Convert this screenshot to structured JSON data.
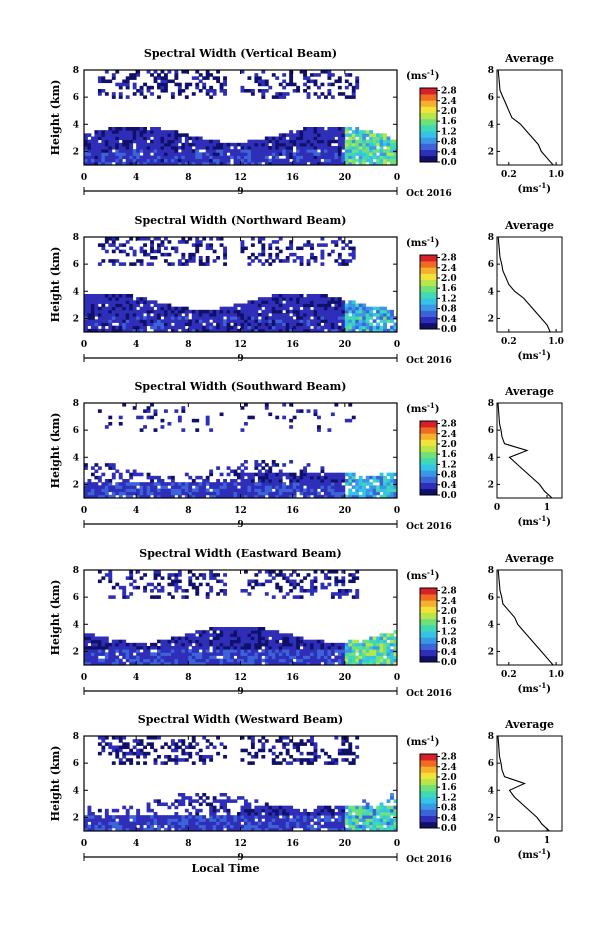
{
  "colorbar": {
    "unit_label": "(ms",
    "unit_exponent": "-1",
    "unit_close": ")",
    "ticks": [
      "0.0",
      "0.4",
      "0.8",
      "1.2",
      "1.6",
      "2.0",
      "2.4",
      "2.8"
    ],
    "tick_values": [
      0.0,
      0.4,
      0.8,
      1.2,
      1.6,
      2.0,
      2.4,
      2.8
    ],
    "range": [
      0,
      2.9
    ],
    "colors": [
      "#10106a",
      "#2e2eb8",
      "#3d63d9",
      "#3a96e6",
      "#36c4e6",
      "#3fd9b4",
      "#6fe07a",
      "#b8e64a",
      "#f2e23a",
      "#f5b02e",
      "#ef6b22",
      "#d8202b"
    ]
  },
  "shared": {
    "date_label": "Oct 2016",
    "day_label": "9",
    "x_axis_title": "Local Time",
    "x_ticks": [
      "0",
      "4",
      "8",
      "12",
      "16",
      "20",
      "0"
    ],
    "y_ticks": [
      "2",
      "4",
      "6",
      "8"
    ],
    "y_axis_title": "Height (km)",
    "avg_title": "Average",
    "avg_unit": "(ms",
    "avg_unit_exp": "-1",
    "avg_unit_close": ")"
  },
  "chart_data": [
    {
      "type": "heatmap",
      "title": "Spectral Width (Vertical Beam)",
      "xlabel": "",
      "ylabel": "Height (km)",
      "xlim": [
        0,
        24
      ],
      "ylim": [
        1,
        8
      ],
      "colorbar_range": [
        0,
        2.9
      ],
      "width_ms": {
        "low_layer": 0.4,
        "mid_layer": 0.3,
        "upper_layer": 0.15,
        "late_evening_low": 1.2
      },
      "average_profile": {
        "title": "Average",
        "xlim": [
          0,
          1.1
        ],
        "x_ticks": [
          "0.2",
          "1.0"
        ],
        "heights_km": [
          1.0,
          1.5,
          2.0,
          2.5,
          3.0,
          3.5,
          4.0,
          4.5,
          5.0,
          5.5,
          6.0,
          6.5,
          7.0,
          7.5,
          8.0
        ],
        "width": [
          0.95,
          0.85,
          0.75,
          0.7,
          0.6,
          0.5,
          0.4,
          0.25,
          0.2,
          0.15,
          0.1,
          0.05,
          0.04,
          0.03,
          0.02
        ]
      }
    },
    {
      "type": "heatmap",
      "title": "Spectral Width (Northward Beam)",
      "xlabel": "",
      "ylabel": "Height (km)",
      "xlim": [
        0,
        24
      ],
      "ylim": [
        1,
        8
      ],
      "colorbar_range": [
        0,
        2.9
      ],
      "width_ms": {
        "low_layer": 0.35,
        "mid_layer": 0.3,
        "upper_layer": 0.2,
        "late_evening_low": 1.0
      },
      "average_profile": {
        "title": "Average",
        "xlim": [
          0,
          1.1
        ],
        "x_ticks": [
          "0.2",
          "1.0"
        ],
        "heights_km": [
          1.0,
          1.5,
          2.0,
          2.5,
          3.0,
          3.5,
          4.0,
          4.5,
          5.0,
          5.5,
          6.0,
          6.5,
          7.0,
          7.5,
          8.0
        ],
        "width": [
          0.9,
          0.85,
          0.75,
          0.65,
          0.55,
          0.45,
          0.3,
          0.2,
          0.15,
          0.1,
          0.08,
          0.05,
          0.04,
          0.03,
          0.02
        ]
      }
    },
    {
      "type": "heatmap",
      "title": "Spectral Width (Southward Beam)",
      "xlabel": "",
      "ylabel": "Height (km)",
      "xlim": [
        0,
        24
      ],
      "ylim": [
        1,
        8
      ],
      "colorbar_range": [
        0,
        2.9
      ],
      "width_ms": {
        "low_layer": 0.45,
        "mid_layer": 0.3,
        "upper_layer": 0.15,
        "late_evening_low": 0.9
      },
      "average_profile": {
        "title": "Average",
        "xlim": [
          0,
          1.3
        ],
        "x_ticks": [
          "0",
          "1"
        ],
        "heights_km": [
          1.0,
          1.5,
          2.0,
          2.5,
          3.0,
          3.5,
          4.0,
          4.5,
          5.0,
          5.5,
          6.0,
          6.5,
          7.0,
          7.5,
          8.0
        ],
        "width": [
          1.1,
          0.95,
          0.85,
          0.7,
          0.55,
          0.4,
          0.25,
          0.6,
          0.15,
          0.1,
          0.08,
          0.05,
          0.04,
          0.03,
          0.02
        ]
      }
    },
    {
      "type": "heatmap",
      "title": "Spectral Width (Eastward Beam)",
      "xlabel": "",
      "ylabel": "Height (km)",
      "xlim": [
        0,
        24
      ],
      "ylim": [
        1,
        8
      ],
      "colorbar_range": [
        0,
        2.9
      ],
      "width_ms": {
        "low_layer": 0.45,
        "mid_layer": 0.3,
        "upper_layer": 0.2,
        "late_evening_low": 1.3
      },
      "average_profile": {
        "title": "Average",
        "xlim": [
          0,
          1.1
        ],
        "x_ticks": [
          "0.2",
          "1.0"
        ],
        "heights_km": [
          1.0,
          1.5,
          2.0,
          2.5,
          3.0,
          3.5,
          4.0,
          4.5,
          5.0,
          5.5,
          6.0,
          6.5,
          7.0,
          7.5,
          8.0
        ],
        "width": [
          0.95,
          0.85,
          0.75,
          0.65,
          0.55,
          0.45,
          0.35,
          0.3,
          0.2,
          0.1,
          0.08,
          0.05,
          0.04,
          0.03,
          0.02
        ]
      }
    },
    {
      "type": "heatmap",
      "title": "Spectral Width (Westward Beam)",
      "xlabel": "Local Time",
      "ylabel": "Height (km)",
      "xlim": [
        0,
        24
      ],
      "ylim": [
        1,
        8
      ],
      "colorbar_range": [
        0,
        2.9
      ],
      "width_ms": {
        "low_layer": 0.45,
        "mid_layer": 0.3,
        "upper_layer": 0.15,
        "late_evening_low": 1.1
      },
      "average_profile": {
        "title": "Average",
        "xlim": [
          0,
          1.3
        ],
        "x_ticks": [
          "0",
          "1"
        ],
        "heights_km": [
          1.0,
          1.5,
          2.0,
          2.5,
          3.0,
          3.5,
          4.0,
          4.5,
          5.0,
          5.5,
          6.0,
          6.5,
          7.0,
          7.5,
          8.0
        ],
        "width": [
          1.05,
          0.9,
          0.8,
          0.65,
          0.5,
          0.35,
          0.25,
          0.55,
          0.15,
          0.1,
          0.08,
          0.05,
          0.04,
          0.03,
          0.02
        ]
      }
    }
  ]
}
